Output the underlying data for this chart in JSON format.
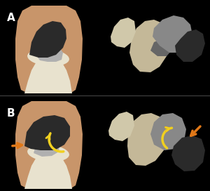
{
  "bg_color": "#000000",
  "skin_color": "#c8956a",
  "bone_cream": "#e8e2ce",
  "bone_dark": "#2a2a2a",
  "bone_gray": "#888888",
  "bone_lgray": "#b0b0b0",
  "bone_tan": "#c4b898",
  "bone_dkgray": "#666666",
  "arrow_orange": "#e07818",
  "arrow_yellow": "#f0d020",
  "label_color": "#ffffff",
  "label_A": "A",
  "label_B": "B"
}
